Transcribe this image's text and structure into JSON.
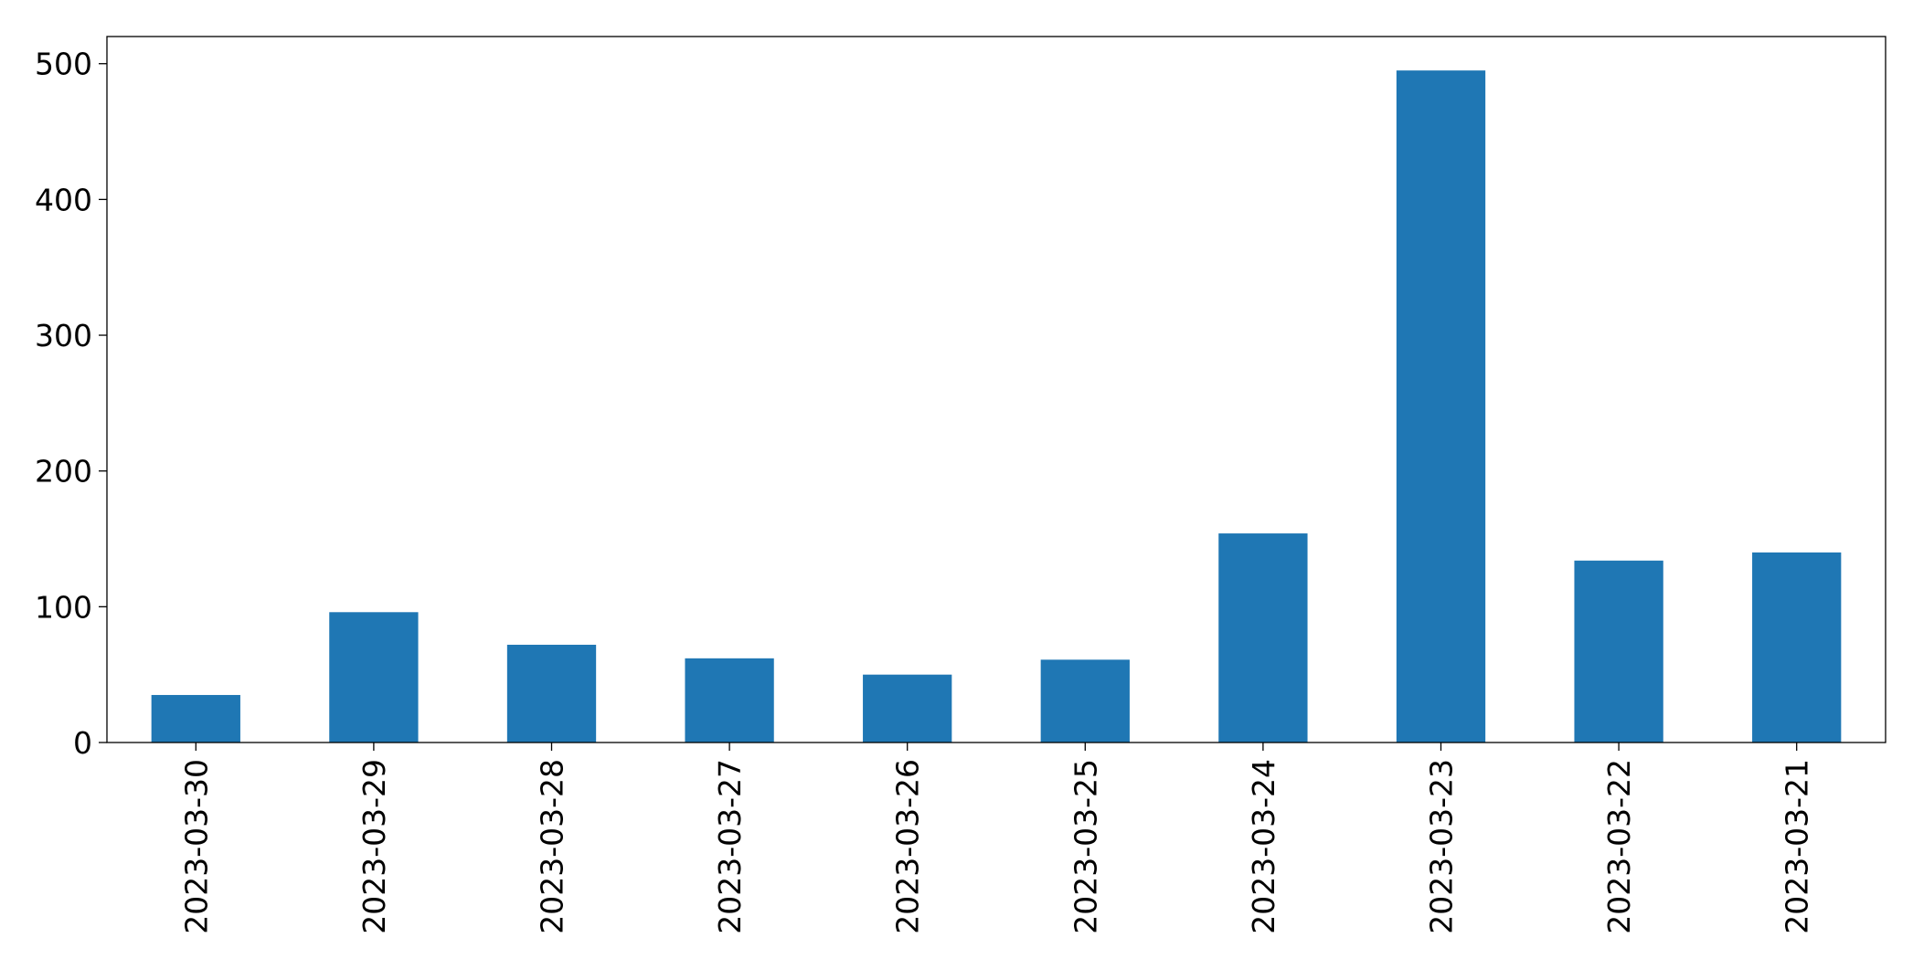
{
  "chart_data": {
    "type": "bar",
    "categories": [
      "2023-03-30",
      "2023-03-29",
      "2023-03-28",
      "2023-03-27",
      "2023-03-26",
      "2023-03-25",
      "2023-03-24",
      "2023-03-23",
      "2023-03-22",
      "2023-03-21"
    ],
    "values": [
      35,
      96,
      72,
      62,
      50,
      61,
      154,
      495,
      134,
      140
    ],
    "color": "#1f77b4",
    "ylim": [
      0,
      520
    ],
    "yticks": [
      0,
      100,
      200,
      300,
      400,
      500
    ],
    "grid": false
  }
}
